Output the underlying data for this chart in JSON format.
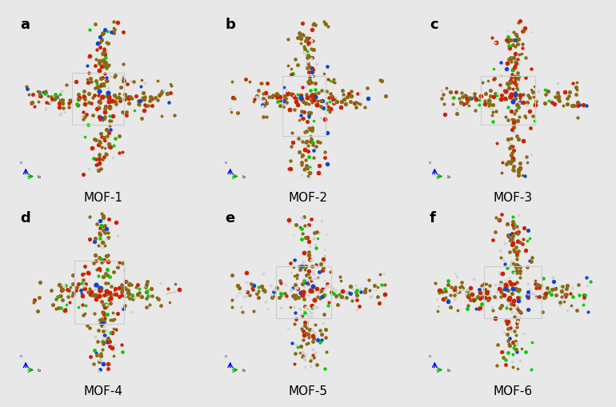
{
  "background_color": "#e8e8e8",
  "panel_labels": [
    "a",
    "b",
    "c",
    "d",
    "e",
    "f"
  ],
  "mof_labels": [
    "MOF-1",
    "MOF-2",
    "MOF-3",
    "MOF-4",
    "MOF-5",
    "MOF-6"
  ],
  "nrows": 2,
  "ncols": 3,
  "figsize": [
    7.7,
    5.09
  ],
  "dpi": 100,
  "label_fontsize": 13,
  "mof_fontsize": 11,
  "axis_colors": {
    "x": "#00aa00",
    "y": "#0000ff",
    "z": "#cc0000"
  },
  "atom_colors": {
    "C": "#8B6914",
    "O": "#cc2200",
    "Cl": "#00cc00",
    "N_blue": "#1144cc",
    "H": "#d0d0d0"
  },
  "bond_color": "#8B6914",
  "cell_color": "#cccccc",
  "panel_bg": "#e8e8e8"
}
